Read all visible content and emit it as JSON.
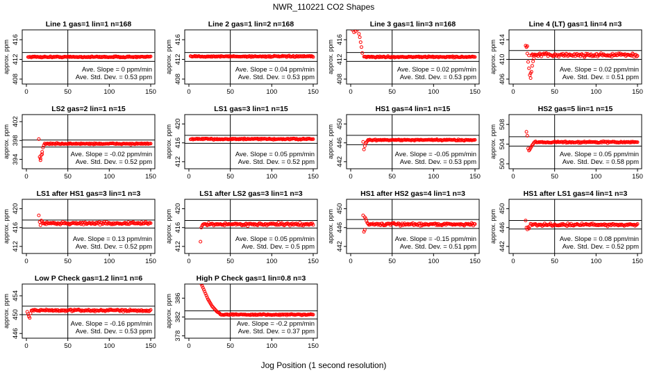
{
  "figure": {
    "title": "NWR_110221  CO2 Shapes",
    "xlabel": "Jog Position (1 second resolution)"
  },
  "colors": {
    "points": "#ff0000",
    "axes": "#000000"
  },
  "chart_data": [
    {
      "type": "scatter",
      "title": "Line 1 gas=1 lin=1 n=168",
      "ylabel": "approx. ppm",
      "xlim": [
        0,
        150
      ],
      "xticks": [
        0,
        50,
        100,
        150
      ],
      "ylim": [
        407,
        418
      ],
      "yticks": [
        408,
        412,
        416
      ],
      "hlines": [
        413.4,
        411.6
      ],
      "vline": 50,
      "slope_text": "Ave. Slope =  0 ppm/min",
      "std_text": "Ave. Std. Dev. =  0.53  ppm",
      "x_start": 2,
      "x_end": 150,
      "level": 412.5,
      "noise": 0.12,
      "transient": []
    },
    {
      "type": "scatter",
      "title": "Line 2 gas=1 lin=2 n=168",
      "ylabel": "approx. ppm",
      "xlim": [
        0,
        150
      ],
      "xticks": [
        0,
        50,
        100,
        150
      ],
      "ylim": [
        407,
        418
      ],
      "yticks": [
        408,
        412,
        416
      ],
      "hlines": [
        413.4,
        411.6
      ],
      "vline": 50,
      "slope_text": "Ave. Slope =  0.04  ppm/min",
      "std_text": "Ave. Std. Dev. =  0.53  ppm",
      "x_start": 2,
      "x_end": 150,
      "level": 412.6,
      "noise": 0.12,
      "transient": []
    },
    {
      "type": "scatter",
      "title": "Line 3 gas=1 lin=3 n=168",
      "ylabel": "approx. ppm",
      "xlim": [
        0,
        150
      ],
      "xticks": [
        0,
        50,
        100,
        150
      ],
      "ylim": [
        407,
        418
      ],
      "yticks": [
        408,
        412,
        416
      ],
      "hlines": [
        413.4,
        411.6
      ],
      "vline": 50,
      "slope_text": "Ave. Slope =  0.02  ppm/min",
      "std_text": "Ave. Std. Dev. =  0.53  ppm",
      "x_start": 16,
      "x_end": 150,
      "level": 412.5,
      "noise": 0.12,
      "transient": [
        [
          2,
          418
        ],
        [
          4,
          417.5
        ],
        [
          6,
          417.7
        ],
        [
          8,
          418
        ],
        [
          10,
          417.2
        ],
        [
          11,
          416.5
        ],
        [
          12,
          415.5
        ],
        [
          13,
          414.5
        ],
        [
          14,
          413.3
        ]
      ]
    },
    {
      "type": "scatter",
      "title": "Line 4 (LT) gas=1 lin=4 n=3",
      "ylabel": "approx. ppm",
      "xlim": [
        0,
        150
      ],
      "xticks": [
        0,
        50,
        100,
        150
      ],
      "ylim": [
        405,
        416
      ],
      "yticks": [
        406,
        410,
        414
      ],
      "hlines": [
        411.8,
        410.0
      ],
      "vline": 50,
      "slope_text": "Ave. Slope =  0.02  ppm/min",
      "std_text": "Ave. Std. Dev. =  0.51  ppm",
      "x_start": 22,
      "x_end": 150,
      "level": 410.9,
      "noise": 0.35,
      "transient": [
        [
          15,
          412.8
        ],
        [
          16,
          412.5
        ],
        [
          17,
          411.2
        ],
        [
          18,
          409.5
        ],
        [
          19,
          408.2
        ],
        [
          20,
          406.8
        ],
        [
          21,
          406.2
        ],
        [
          22,
          407.5
        ],
        [
          23,
          408.7
        ],
        [
          24,
          409.6
        ],
        [
          25,
          410.2
        ],
        [
          17,
          412.7
        ],
        [
          19,
          410.8
        ],
        [
          21,
          407.2
        ]
      ]
    },
    {
      "type": "scatter",
      "title": "LS2 gas=2 lin=1 n=15",
      "ylabel": "approx. ppm",
      "xlim": [
        0,
        150
      ],
      "xticks": [
        0,
        50,
        100,
        150
      ],
      "ylim": [
        392,
        403.5
      ],
      "yticks": [
        394,
        398,
        402
      ],
      "hlines": [
        398.1,
        396.6
      ],
      "vline": 50,
      "slope_text": "Ave. Slope =  -0.02  ppm/min",
      "std_text": "Ave. Std. Dev. =  0.52  ppm",
      "x_start": 22,
      "x_end": 150,
      "level": 397.3,
      "noise": 0.12,
      "transient": [
        [
          15,
          398.3
        ],
        [
          16,
          394.5
        ],
        [
          17,
          393.8
        ],
        [
          18,
          394.9
        ],
        [
          19,
          395.6
        ],
        [
          20,
          396.5
        ],
        [
          21,
          397.0
        ],
        [
          17,
          394.2
        ],
        [
          19,
          395.1
        ]
      ]
    },
    {
      "type": "scatter",
      "title": "LS1 gas=3 lin=1 n=15",
      "ylabel": "approx. ppm",
      "xlim": [
        0,
        150
      ],
      "xticks": [
        0,
        50,
        100,
        150
      ],
      "ylim": [
        410.5,
        422
      ],
      "yticks": [
        412,
        416,
        420
      ],
      "hlines": [
        417.6,
        415.9
      ],
      "vline": 50,
      "slope_text": "Ave. Slope =  0.05  ppm/min",
      "std_text": "Ave. Std. Dev. =  0.52  ppm",
      "x_start": 2,
      "x_end": 150,
      "level": 416.8,
      "noise": 0.12,
      "transient": []
    },
    {
      "type": "scatter",
      "title": "HS1 gas=4 lin=1 n=15",
      "ylabel": "approx. ppm",
      "xlim": [
        0,
        150
      ],
      "xticks": [
        0,
        50,
        100,
        150
      ],
      "ylim": [
        440.5,
        452
      ],
      "yticks": [
        442,
        446,
        450
      ],
      "hlines": [
        447.6,
        445.6
      ],
      "vline": 50,
      "slope_text": "Ave. Slope =  -0.05  ppm/min",
      "std_text": "Ave. Std. Dev. =  0.53  ppm",
      "x_start": 21,
      "x_end": 150,
      "level": 446.6,
      "noise": 0.12,
      "transient": [
        [
          15,
          446.2
        ],
        [
          16,
          444.6
        ],
        [
          17,
          445.3
        ],
        [
          18,
          445.9
        ],
        [
          19,
          446.1
        ],
        [
          20,
          446.4
        ]
      ]
    },
    {
      "type": "scatter",
      "title": "HS2 gas=5 lin=1 n=15",
      "ylabel": "approx. ppm",
      "xlim": [
        0,
        150
      ],
      "xticks": [
        0,
        50,
        100,
        150
      ],
      "ylim": [
        499,
        510
      ],
      "yticks": [
        500,
        504,
        508
      ],
      "hlines": [
        505.5,
        503.6
      ],
      "vline": 50,
      "slope_text": "Ave. Slope =  0.05  ppm/min",
      "std_text": "Ave. Std. Dev. =  0.58  ppm",
      "x_start": 25,
      "x_end": 150,
      "level": 504.4,
      "noise": 0.15,
      "transient": [
        [
          16,
          506.5
        ],
        [
          17,
          505.7
        ],
        [
          18,
          503.1
        ],
        [
          19,
          502.7
        ],
        [
          20,
          502.9
        ],
        [
          21,
          503.2
        ],
        [
          22,
          503.5
        ],
        [
          23,
          503.8
        ],
        [
          24,
          504.0
        ]
      ]
    },
    {
      "type": "scatter",
      "title": "LS1 after HS1 gas=3 lin=1 n=3",
      "ylabel": "approx. ppm",
      "xlim": [
        0,
        150
      ],
      "xticks": [
        0,
        50,
        100,
        150
      ],
      "ylim": [
        410.5,
        422
      ],
      "yticks": [
        412,
        416,
        420
      ],
      "hlines": [
        417.6,
        415.9
      ],
      "vline": 50,
      "slope_text": "Ave. Slope =  0.13  ppm/min",
      "std_text": "Ave. Std. Dev. =  0.52  ppm",
      "x_start": 20,
      "x_end": 150,
      "level": 416.9,
      "noise": 0.25,
      "transient": [
        [
          15,
          418.6
        ],
        [
          16,
          417.2
        ],
        [
          17,
          416.5
        ],
        [
          18,
          417.5
        ],
        [
          19,
          417.3
        ]
      ]
    },
    {
      "type": "scatter",
      "title": "LS1 after LS2 gas=3 lin=1 n=3",
      "ylabel": "approx. ppm",
      "xlim": [
        0,
        150
      ],
      "xticks": [
        0,
        50,
        100,
        150
      ],
      "ylim": [
        410.5,
        422
      ],
      "yticks": [
        412,
        416,
        420
      ],
      "hlines": [
        417.5,
        415.9
      ],
      "vline": 50,
      "slope_text": "Ave. Slope =  0.05  ppm/min",
      "std_text": "Ave. Std. Dev. =  0.5  ppm",
      "x_start": 17,
      "x_end": 150,
      "level": 416.7,
      "noise": 0.25,
      "transient": [
        [
          14,
          413.0
        ],
        [
          15,
          416.0
        ],
        [
          16,
          416.4
        ]
      ]
    },
    {
      "type": "scatter",
      "title": "HS1 after HS2 gas=4 lin=1 n=3",
      "ylabel": "approx. ppm",
      "xlim": [
        0,
        150
      ],
      "xticks": [
        0,
        50,
        100,
        150
      ],
      "ylim": [
        440.5,
        452
      ],
      "yticks": [
        442,
        446,
        450
      ],
      "hlines": [
        447.7,
        445.8
      ],
      "vline": 50,
      "slope_text": "Ave. Slope =  -0.15  ppm/min",
      "std_text": "Ave. Std. Dev. =  0.51  ppm",
      "x_start": 22,
      "x_end": 150,
      "level": 446.7,
      "noise": 0.25,
      "transient": [
        [
          15,
          448.6
        ],
        [
          16,
          445.1
        ],
        [
          17,
          445.5
        ],
        [
          18,
          447.9
        ],
        [
          19,
          447.4
        ],
        [
          20,
          447.0
        ],
        [
          21,
          446.8
        ],
        [
          17,
          448.2
        ]
      ]
    },
    {
      "type": "scatter",
      "title": "HS1 after LS1 gas=4 lin=1 n=3",
      "ylabel": "approx. ppm",
      "xlim": [
        0,
        150
      ],
      "xticks": [
        0,
        50,
        100,
        150
      ],
      "ylim": [
        440.5,
        452
      ],
      "yticks": [
        442,
        446,
        450
      ],
      "hlines": [
        447.5,
        445.7
      ],
      "vline": 50,
      "slope_text": "Ave. Slope =  0.08  ppm/min",
      "std_text": "Ave. Std. Dev. =  0.52  ppm",
      "x_start": 21,
      "x_end": 150,
      "level": 446.6,
      "noise": 0.25,
      "transient": [
        [
          15,
          447.5
        ],
        [
          16,
          446.0
        ],
        [
          17,
          445.6
        ],
        [
          18,
          446.1
        ],
        [
          19,
          445.8
        ],
        [
          20,
          446.3
        ]
      ]
    },
    {
      "type": "scatter",
      "title": "Low P Check gas=1.2 lin=1 n=6",
      "ylabel": "approx. ppm",
      "xlim": [
        0,
        150
      ],
      "xticks": [
        0,
        50,
        100,
        150
      ],
      "ylim": [
        445,
        456.5
      ],
      "yticks": [
        446,
        450,
        454
      ],
      "hlines": [
        451.8,
        450.0
      ],
      "vline": 50,
      "slope_text": "Ave. Slope =  -0.16  ppm/min",
      "std_text": "Ave. Std. Dev. =  0.53  ppm",
      "x_start": 6,
      "x_end": 150,
      "level": 450.9,
      "noise": 0.2,
      "transient": [
        [
          1,
          450.6
        ],
        [
          2,
          450.1
        ],
        [
          3,
          449.6
        ],
        [
          4,
          449.3
        ],
        [
          5,
          450.3
        ]
      ]
    },
    {
      "type": "scatter",
      "title": "High P Check gas=1 lin=0.8 n=3",
      "ylabel": "approx. ppm",
      "xlim": [
        0,
        150
      ],
      "xticks": [
        0,
        50,
        100,
        150
      ],
      "ylim": [
        377.5,
        389
      ],
      "yticks": [
        378,
        382,
        386
      ],
      "hlines": [
        383.3,
        381.6
      ],
      "vline": 50,
      "slope_text": "Ave. Slope =  -0.2  ppm/min",
      "std_text": "Ave. Std. Dev. =  0.37  ppm",
      "x_start": 38,
      "x_end": 150,
      "level": 382.5,
      "noise": 0.12,
      "transient": [
        [
          15,
          389
        ],
        [
          16,
          388.6
        ],
        [
          17,
          388.2
        ],
        [
          18,
          387.8
        ],
        [
          19,
          387.4
        ],
        [
          20,
          387.0
        ],
        [
          21,
          386.6
        ],
        [
          22,
          386.2
        ],
        [
          23,
          385.8
        ],
        [
          24,
          385.5
        ],
        [
          25,
          385.2
        ],
        [
          26,
          384.9
        ],
        [
          27,
          384.6
        ],
        [
          28,
          384.3
        ],
        [
          29,
          384.1
        ],
        [
          30,
          383.9
        ],
        [
          31,
          383.7
        ],
        [
          32,
          383.5
        ],
        [
          33,
          383.3
        ],
        [
          34,
          383.1
        ],
        [
          35,
          383.0
        ],
        [
          36,
          382.9
        ],
        [
          37,
          382.8
        ]
      ]
    }
  ]
}
